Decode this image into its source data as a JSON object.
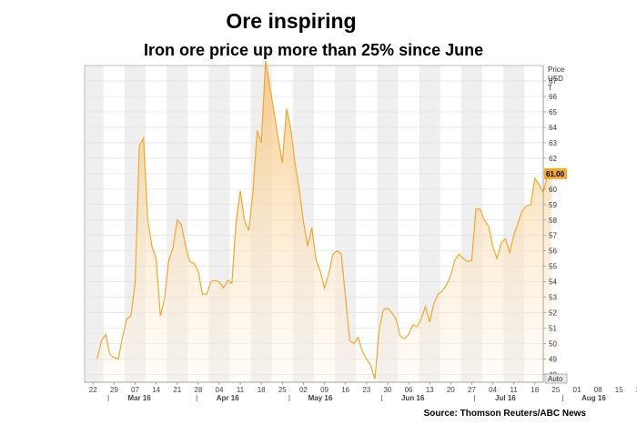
{
  "chart_data": {
    "type": "area",
    "title": "Ore inspiring",
    "subtitle": "Iron ore price up more than 25% since June",
    "source": "Source: Thomson Reuters/ABC News",
    "ylabel": [
      "Price",
      "USD",
      "T"
    ],
    "ylim": [
      47.5,
      68
    ],
    "yticks": [
      48,
      49,
      50,
      51,
      52,
      53,
      54,
      55,
      56,
      57,
      58,
      59,
      60,
      61,
      62,
      63,
      64,
      65,
      66,
      67
    ],
    "ytick_labels": [
      "48",
      "49",
      "50",
      "51",
      "52",
      "53",
      "54",
      "55",
      "56",
      "57",
      "58",
      "59",
      "60",
      "61",
      "62",
      "63",
      "64",
      "65",
      "66",
      "67"
    ],
    "last_value_label": "61.00",
    "last_value": 61.0,
    "auto_label": "Auto",
    "x_start_index": -3,
    "x_end_index": 106,
    "xtick_indices": [
      -1,
      4,
      9,
      14,
      19,
      24,
      29,
      34,
      39,
      44,
      49,
      54,
      59,
      64,
      69,
      74,
      79,
      84,
      89,
      94,
      99,
      104
    ],
    "xtick_labels": [
      "22",
      "29",
      "07",
      "14",
      "21",
      "28",
      "04",
      "11",
      "18",
      "25",
      "02",
      "09",
      "16",
      "23",
      "30",
      "06",
      "13",
      "20",
      "27",
      "04",
      "11",
      "18"
    ],
    "month_labels": [
      {
        "label": "Mar 16",
        "index": 10
      },
      {
        "label": "Apr 16",
        "index": 31
      },
      {
        "label": "May 16",
        "index": 53
      },
      {
        "label": "Jun 16",
        "index": 75
      },
      {
        "label": "Jul 16",
        "index": 97
      }
    ],
    "x_tick_labels_visible": [
      "22",
      "29",
      "07",
      "14",
      "21",
      "28",
      "04",
      "11",
      "18",
      "25",
      "02",
      "09",
      "16",
      "23",
      "30",
      "06",
      "13",
      "20",
      "27",
      "04",
      "11",
      "18",
      "25",
      "01",
      "08",
      "15",
      "22",
      "29"
    ],
    "month_labels_visible": [
      "Mar 16",
      "Apr 16",
      "May 16",
      "Jun 16",
      "Jul 16",
      "Aug 16"
    ],
    "series": [
      {
        "color": "#f0a830",
        "values": [
          49.0,
          50.2,
          50.6,
          49.3,
          49.1,
          49.0,
          50.4,
          51.6,
          51.8,
          53.9,
          62.8,
          63.3,
          58.0,
          56.3,
          55.5,
          51.8,
          52.9,
          55.4,
          56.2,
          58.0,
          57.7,
          56.3,
          55.3,
          55.2,
          54.7,
          53.2,
          53.2,
          54.0,
          54.1,
          54.0,
          53.6,
          54.1,
          53.9,
          57.9,
          59.9,
          58.0,
          57.3,
          59.8,
          63.8,
          63.0,
          68.3,
          66.7,
          65.0,
          63.3,
          61.7,
          65.2,
          63.9,
          61.7,
          60.0,
          57.9,
          56.3,
          57.5,
          55.4,
          54.7,
          53.6,
          54.5,
          55.8,
          56.0,
          55.8,
          53.0,
          50.2,
          50.0,
          50.4,
          49.5,
          49.0,
          48.6,
          47.7,
          50.9,
          52.2,
          52.3,
          52.0,
          51.6,
          50.5,
          50.3,
          50.6,
          51.2,
          51.1,
          51.6,
          52.4,
          51.4,
          52.6,
          53.2,
          53.4,
          53.8,
          54.4,
          55.4,
          55.8,
          55.5,
          55.3,
          55.4,
          58.7,
          58.7,
          58.0,
          57.6,
          56.3,
          55.5,
          56.5,
          56.8,
          55.9,
          57.0,
          57.8,
          58.6,
          58.9,
          59.0,
          60.7,
          60.3,
          59.8,
          60.9,
          61.0
        ]
      }
    ]
  }
}
